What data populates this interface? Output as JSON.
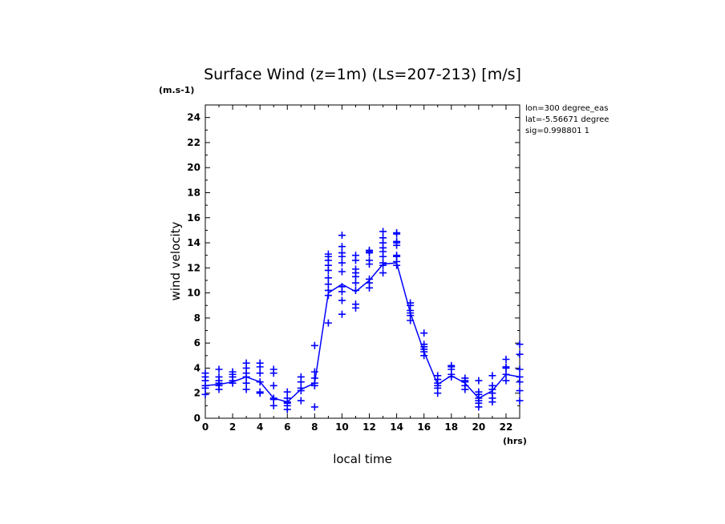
{
  "chart_data": {
    "type": "line",
    "title": "Surface Wind (z=1m) (Ls=207-213) [m/s]",
    "y_unit": "(m.s-1)",
    "x_unit": "(hrs)",
    "xlabel": "local time",
    "ylabel": "wind velocity",
    "xlim": [
      0,
      23
    ],
    "ylim": [
      0,
      25
    ],
    "x_ticks": [
      0,
      2,
      4,
      6,
      8,
      10,
      12,
      14,
      16,
      18,
      20,
      22
    ],
    "y_ticks": [
      0,
      2,
      4,
      6,
      8,
      10,
      12,
      14,
      16,
      18,
      20,
      22,
      24
    ],
    "annotations": [
      "lon=300 degree_eas",
      "lat=-5.56671 degree",
      "sig=0.998801 1"
    ],
    "grid": false,
    "color": "#0000ff",
    "series": [
      {
        "type": "line",
        "x": [
          0,
          1,
          2,
          3,
          4,
          5,
          6,
          7,
          8,
          9,
          10,
          11,
          12,
          13,
          14,
          15,
          16,
          17,
          18,
          19,
          20,
          21,
          22,
          23
        ],
        "y": [
          2.6,
          2.7,
          2.9,
          3.3,
          2.9,
          1.6,
          1.3,
          2.3,
          2.8,
          10.0,
          10.7,
          10.1,
          11.0,
          12.3,
          12.4,
          8.4,
          5.3,
          2.7,
          3.4,
          2.8,
          1.6,
          2.2,
          3.5,
          3.3
        ]
      },
      {
        "type": "scatter",
        "marker": "+",
        "x": [
          0,
          0,
          0,
          0,
          0,
          0,
          1,
          1,
          1,
          1,
          1,
          1,
          2,
          2,
          2,
          2,
          2,
          3,
          3,
          3,
          3,
          3,
          3,
          4,
          4,
          4,
          4,
          4,
          4,
          5,
          5,
          5,
          5,
          5,
          5,
          6,
          6,
          6,
          6,
          6,
          6,
          7,
          7,
          7,
          7,
          7,
          8,
          8,
          8,
          8,
          8,
          8,
          9,
          9,
          9,
          9,
          9,
          9,
          9,
          9,
          9,
          9,
          10,
          10,
          10,
          10,
          10,
          10,
          10,
          10,
          10,
          10,
          11,
          11,
          11,
          11,
          11,
          11,
          11,
          11,
          11,
          12,
          12,
          12,
          12,
          12,
          12,
          12,
          12,
          13,
          13,
          13,
          13,
          13,
          13,
          13,
          13,
          13,
          14,
          14,
          14,
          14,
          14,
          14,
          14,
          14,
          14,
          15,
          15,
          15,
          15,
          15,
          15,
          16,
          16,
          16,
          16,
          16,
          16,
          17,
          17,
          17,
          17,
          17,
          17,
          18,
          18,
          18,
          18,
          18,
          19,
          19,
          19,
          19,
          19,
          20,
          20,
          20,
          20,
          20,
          20,
          20,
          21,
          21,
          21,
          21,
          21,
          21,
          22,
          22,
          22,
          22,
          22,
          23,
          23,
          23,
          23,
          23,
          23,
          23
        ],
        "y": [
          1.9,
          2.6,
          3.0,
          3.3,
          3.6,
          2.4,
          2.3,
          2.6,
          3.0,
          3.3,
          3.9,
          2.8,
          2.8,
          3.3,
          3.5,
          3.7,
          3.0,
          2.3,
          3.3,
          3.6,
          4.0,
          4.4,
          2.8,
          2.0,
          2.9,
          3.6,
          4.1,
          4.4,
          2.1,
          1.0,
          1.6,
          2.6,
          3.6,
          3.9,
          1.5,
          0.7,
          1.0,
          1.3,
          1.6,
          2.1,
          1.2,
          1.4,
          2.2,
          2.4,
          2.9,
          3.3,
          0.9,
          2.6,
          2.8,
          3.2,
          3.7,
          5.8,
          7.6,
          9.8,
          10.2,
          10.7,
          11.2,
          11.8,
          12.2,
          12.6,
          12.9,
          13.1,
          8.3,
          9.4,
          10.1,
          10.5,
          11.7,
          12.4,
          12.9,
          13.2,
          13.7,
          14.6,
          8.8,
          9.1,
          10.2,
          10.8,
          11.3,
          11.6,
          11.9,
          12.6,
          13.0,
          10.4,
          10.8,
          11.1,
          12.3,
          12.6,
          13.2,
          13.3,
          13.4,
          11.6,
          12.2,
          12.4,
          12.9,
          13.3,
          13.6,
          14.0,
          14.4,
          14.9,
          12.2,
          12.5,
          12.9,
          13.0,
          13.8,
          14.0,
          14.1,
          14.7,
          14.8,
          7.8,
          8.2,
          8.4,
          8.6,
          9.0,
          9.2,
          5.0,
          5.3,
          5.5,
          5.7,
          5.9,
          6.8,
          2.0,
          2.4,
          2.6,
          2.8,
          3.1,
          3.4,
          3.3,
          3.5,
          3.9,
          4.1,
          4.2,
          2.3,
          2.6,
          2.9,
          3.0,
          3.2,
          0.9,
          1.2,
          1.4,
          1.6,
          1.9,
          2.1,
          3.0,
          1.3,
          1.6,
          2.0,
          2.3,
          2.6,
          3.4,
          3.0,
          3.5,
          4.0,
          4.1,
          4.7,
          1.4,
          2.2,
          2.9,
          3.3,
          3.9,
          5.1,
          5.9
        ]
      }
    ]
  }
}
